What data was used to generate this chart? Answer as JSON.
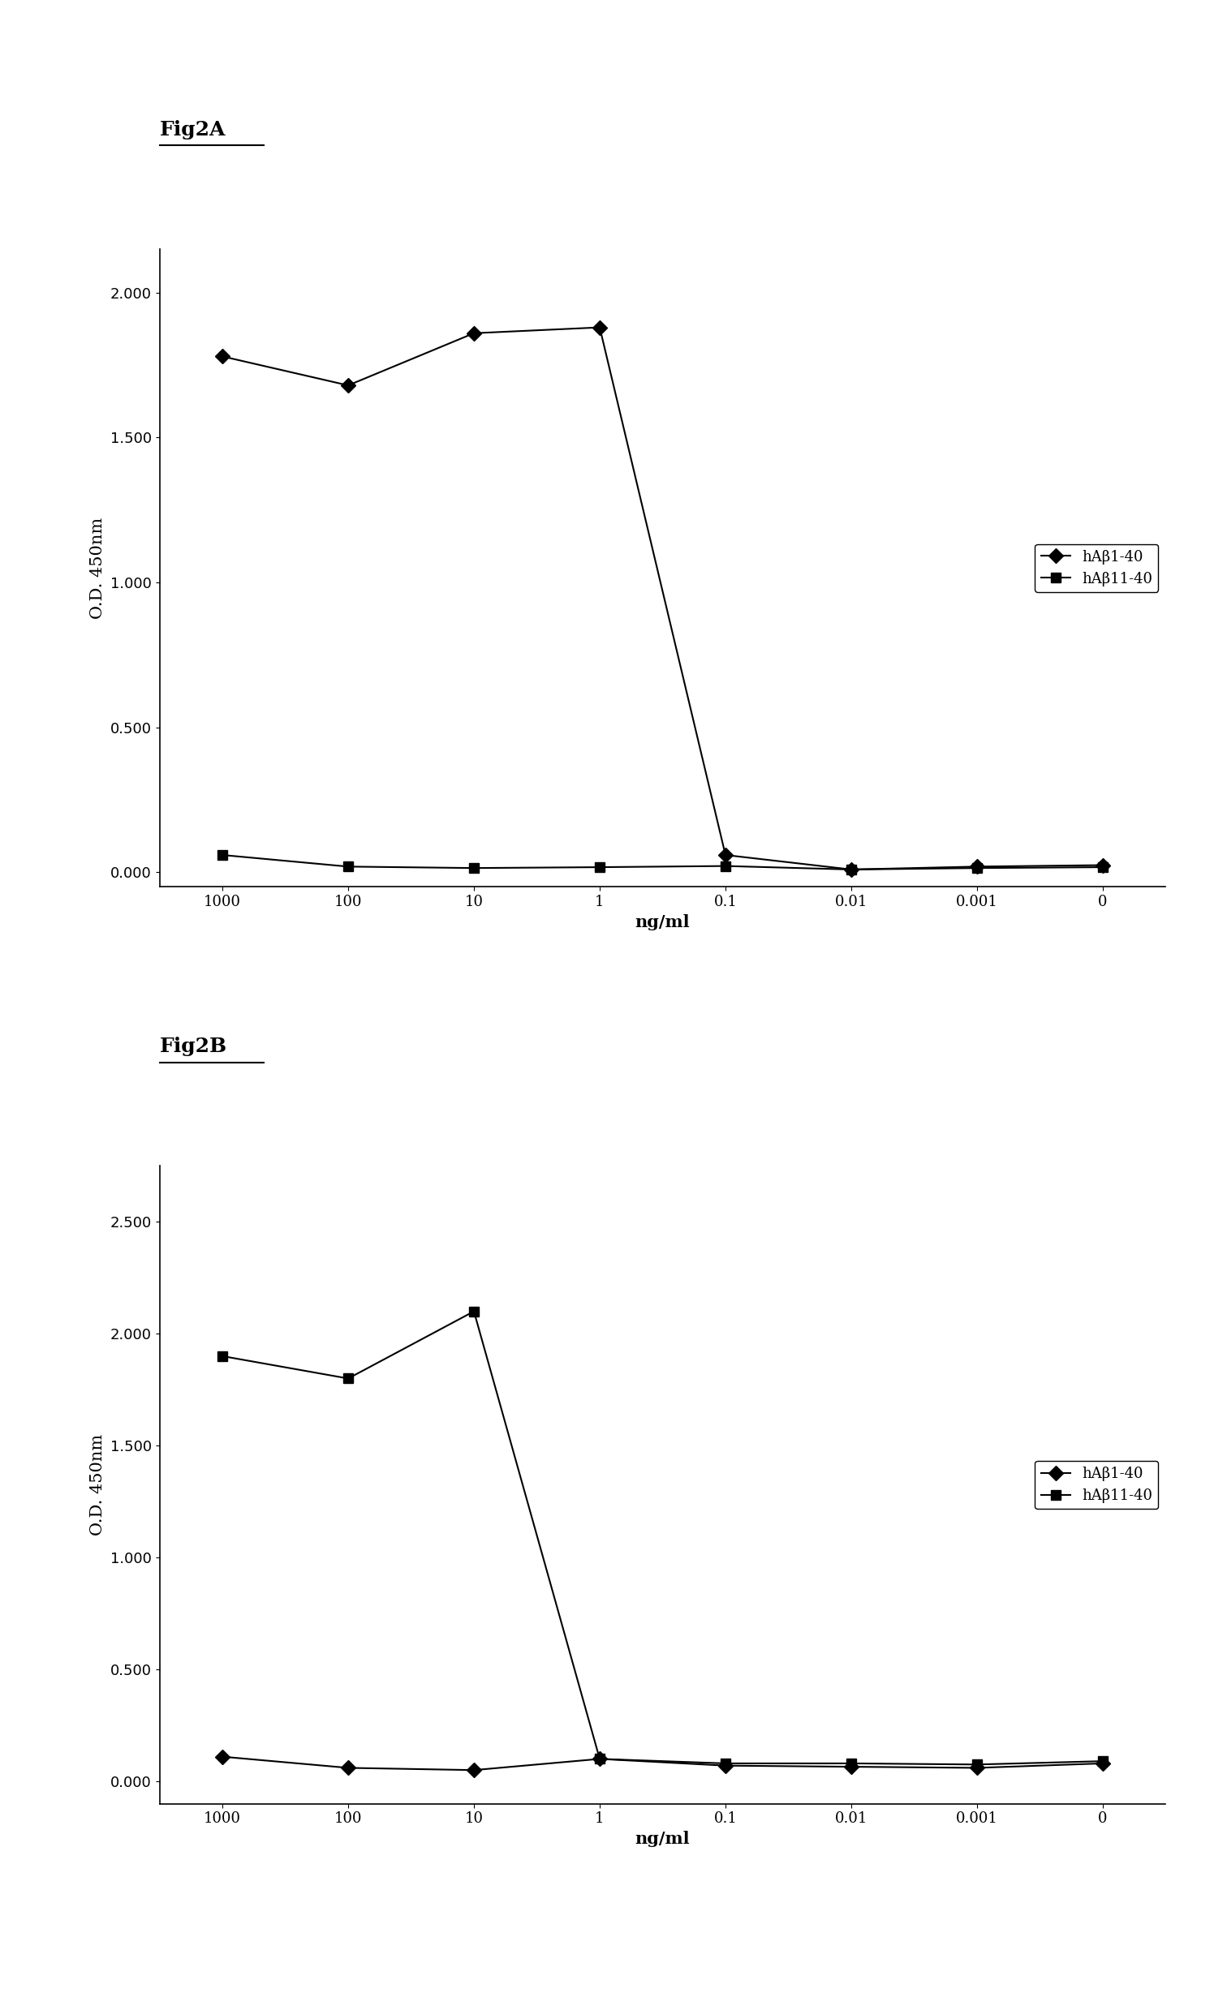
{
  "figA": {
    "title": "Fig2A",
    "x_labels": [
      "1000",
      "100",
      "10",
      "1",
      "0.1",
      "0.01",
      "0.001",
      "0"
    ],
    "x_positions": [
      0,
      1,
      2,
      3,
      4,
      5,
      6,
      7
    ],
    "series1_label": "hAβ1-40",
    "series1_values": [
      1.78,
      1.68,
      1.86,
      1.88,
      0.06,
      0.01,
      0.02,
      0.025
    ],
    "series1_marker": "D",
    "series2_label": "hAβ11-40",
    "series2_values": [
      0.06,
      0.02,
      0.015,
      0.018,
      0.022,
      0.01,
      0.015,
      0.018
    ],
    "series2_marker": "s",
    "ylabel": "O.D. 450nm",
    "xlabel": "ng/ml",
    "ylim": [
      -0.05,
      2.15
    ],
    "yticks": [
      0.0,
      0.5,
      1.0,
      1.5,
      2.0
    ]
  },
  "figB": {
    "title": "Fig2B",
    "x_labels": [
      "1000",
      "100",
      "10",
      "1",
      "0.1",
      "0.01",
      "0.001",
      "0"
    ],
    "x_positions": [
      0,
      1,
      2,
      3,
      4,
      5,
      6,
      7
    ],
    "series1_label": "hAβ1-40",
    "series1_values": [
      0.11,
      0.06,
      0.05,
      0.1,
      0.07,
      0.065,
      0.06,
      0.08
    ],
    "series1_marker": "D",
    "series2_label": "hAβ11-40",
    "series2_values": [
      1.9,
      1.8,
      2.1,
      0.1,
      0.08,
      0.08,
      0.075,
      0.09
    ],
    "series2_marker": "s",
    "ylabel": "O.D. 450nm",
    "xlabel": "ng/ml",
    "ylim": [
      -0.1,
      2.75
    ],
    "yticks": [
      0.0,
      0.5,
      1.0,
      1.5,
      2.0,
      2.5
    ]
  },
  "line_color": "#000000",
  "background_color": "#ffffff",
  "title_fontsize": 18,
  "axis_fontsize": 15,
  "tick_fontsize": 13,
  "legend_fontsize": 13,
  "marker_size": 9,
  "line_width": 1.5
}
